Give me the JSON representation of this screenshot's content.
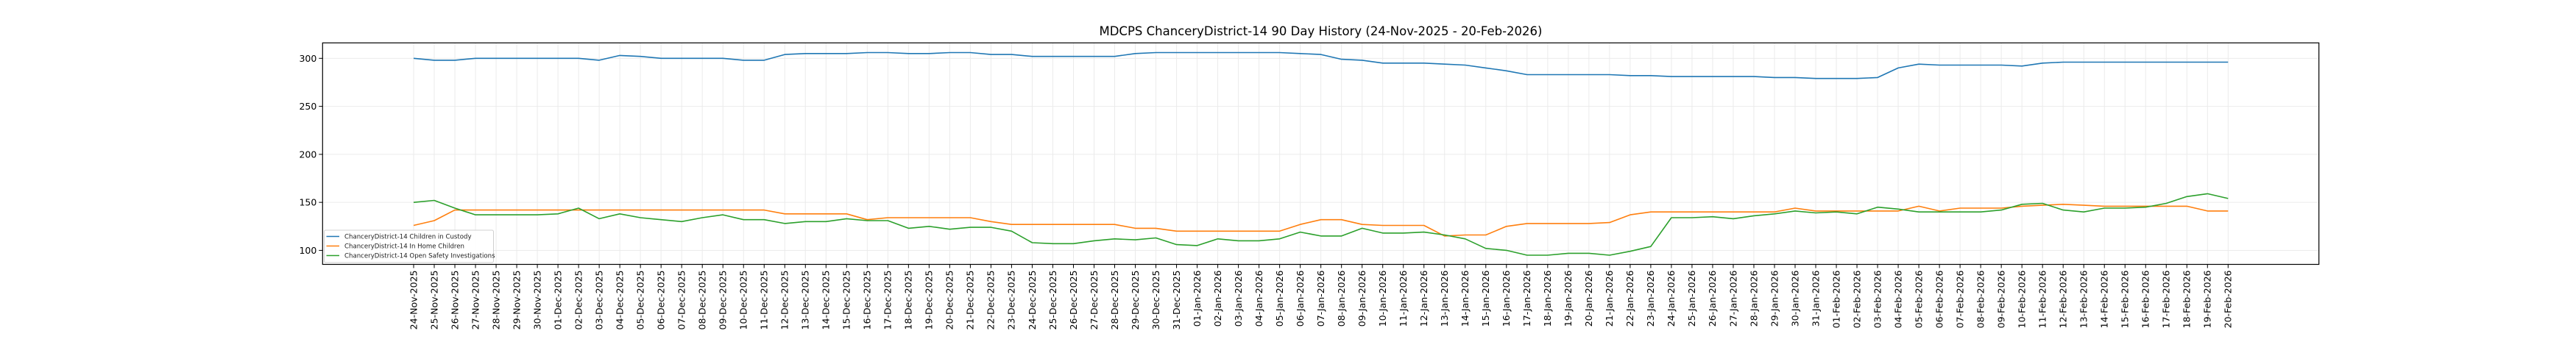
{
  "chart_data": {
    "type": "line",
    "title": "MDCPS ChanceryDistrict-14 90 Day History (24-Nov-2025 - 20-Feb-2026)",
    "xlabel": "",
    "ylabel": "",
    "ylim": [
      85.4,
      316.1
    ],
    "yticks": [
      100,
      150,
      200,
      250,
      300
    ],
    "grid": true,
    "legend_position": "lower-left",
    "x": [
      "24-Nov-2025",
      "25-Nov-2025",
      "26-Nov-2025",
      "27-Nov-2025",
      "28-Nov-2025",
      "29-Nov-2025",
      "30-Nov-2025",
      "01-Dec-2025",
      "02-Dec-2025",
      "03-Dec-2025",
      "04-Dec-2025",
      "05-Dec-2025",
      "06-Dec-2025",
      "07-Dec-2025",
      "08-Dec-2025",
      "09-Dec-2025",
      "10-Dec-2025",
      "11-Dec-2025",
      "12-Dec-2025",
      "13-Dec-2025",
      "14-Dec-2025",
      "15-Dec-2025",
      "16-Dec-2025",
      "17-Dec-2025",
      "18-Dec-2025",
      "19-Dec-2025",
      "20-Dec-2025",
      "21-Dec-2025",
      "22-Dec-2025",
      "23-Dec-2025",
      "24-Dec-2025",
      "25-Dec-2025",
      "26-Dec-2025",
      "27-Dec-2025",
      "28-Dec-2025",
      "29-Dec-2025",
      "30-Dec-2025",
      "31-Dec-2025",
      "01-Jan-2026",
      "02-Jan-2026",
      "03-Jan-2026",
      "04-Jan-2026",
      "05-Jan-2026",
      "06-Jan-2026",
      "07-Jan-2026",
      "08-Jan-2026",
      "09-Jan-2026",
      "10-Jan-2026",
      "11-Jan-2026",
      "12-Jan-2026",
      "13-Jan-2026",
      "14-Jan-2026",
      "15-Jan-2026",
      "16-Jan-2026",
      "17-Jan-2026",
      "18-Jan-2026",
      "19-Jan-2026",
      "20-Jan-2026",
      "21-Jan-2026",
      "22-Jan-2026",
      "23-Jan-2026",
      "24-Jan-2026",
      "25-Jan-2026",
      "26-Jan-2026",
      "27-Jan-2026",
      "28-Jan-2026",
      "29-Jan-2026",
      "30-Jan-2026",
      "31-Jan-2026",
      "01-Feb-2026",
      "02-Feb-2026",
      "03-Feb-2026",
      "04-Feb-2026",
      "05-Feb-2026",
      "06-Feb-2026",
      "07-Feb-2026",
      "08-Feb-2026",
      "09-Feb-2026",
      "10-Feb-2026",
      "11-Feb-2026",
      "12-Feb-2026",
      "13-Feb-2026",
      "14-Feb-2026",
      "15-Feb-2026",
      "16-Feb-2026",
      "17-Feb-2026",
      "18-Feb-2026",
      "19-Feb-2026",
      "20-Feb-2026"
    ],
    "series": [
      {
        "name": "ChanceryDistrict-14 Children in Custody",
        "color": "#1f77b4",
        "values": [
          300,
          298,
          298,
          300,
          300,
          300,
          300,
          300,
          300,
          298,
          303,
          302,
          300,
          300,
          300,
          300,
          298,
          298,
          304,
          305,
          305,
          305,
          306,
          306,
          305,
          305,
          306,
          306,
          304,
          304,
          302,
          302,
          302,
          302,
          302,
          305,
          306,
          306,
          306,
          306,
          306,
          306,
          306,
          305,
          304,
          299,
          298,
          295,
          295,
          295,
          294,
          293,
          290,
          287,
          283,
          283,
          283,
          283,
          283,
          282,
          282,
          281,
          281,
          281,
          281,
          281,
          280,
          280,
          279,
          279,
          279,
          280,
          290,
          294,
          293,
          293,
          293,
          293,
          292,
          295,
          296,
          296,
          296,
          296,
          296,
          296,
          296,
          296,
          296
        ]
      },
      {
        "name": "ChanceryDistrict-14 In Home Children",
        "color": "#ff7f0e",
        "values": [
          126,
          131,
          142,
          142,
          142,
          142,
          142,
          142,
          142,
          142,
          142,
          142,
          142,
          142,
          142,
          142,
          142,
          142,
          138,
          138,
          138,
          138,
          132,
          134,
          134,
          134,
          134,
          134,
          130,
          127,
          127,
          127,
          127,
          127,
          127,
          123,
          123,
          120,
          120,
          120,
          120,
          120,
          120,
          127,
          132,
          132,
          127,
          126,
          126,
          126,
          115,
          116,
          116,
          125,
          128,
          128,
          128,
          128,
          129,
          137,
          140,
          140,
          140,
          140,
          140,
          140,
          140,
          144,
          141,
          141,
          141,
          141,
          141,
          146,
          141,
          144,
          144,
          144,
          146,
          147,
          148,
          147,
          146,
          146,
          146,
          146,
          146,
          141,
          141
        ]
      },
      {
        "name": "ChanceryDistrict-14 Open Safety Investigations",
        "color": "#2ca02c",
        "values": [
          150,
          152,
          144,
          137,
          137,
          137,
          137,
          138,
          144,
          133,
          138,
          134,
          132,
          130,
          134,
          137,
          132,
          132,
          128,
          130,
          130,
          133,
          131,
          131,
          123,
          125,
          122,
          124,
          124,
          120,
          108,
          107,
          107,
          110,
          112,
          111,
          113,
          106,
          105,
          112,
          110,
          110,
          112,
          119,
          115,
          115,
          123,
          118,
          118,
          119,
          116,
          112,
          102,
          100,
          95,
          95,
          97,
          97,
          95,
          99,
          104,
          134,
          134,
          135,
          133,
          136,
          138,
          141,
          139,
          140,
          138,
          145,
          143,
          140,
          140,
          140,
          140,
          142,
          148,
          149,
          142,
          140,
          144,
          144,
          145,
          149,
          156,
          159,
          154
        ]
      }
    ]
  }
}
